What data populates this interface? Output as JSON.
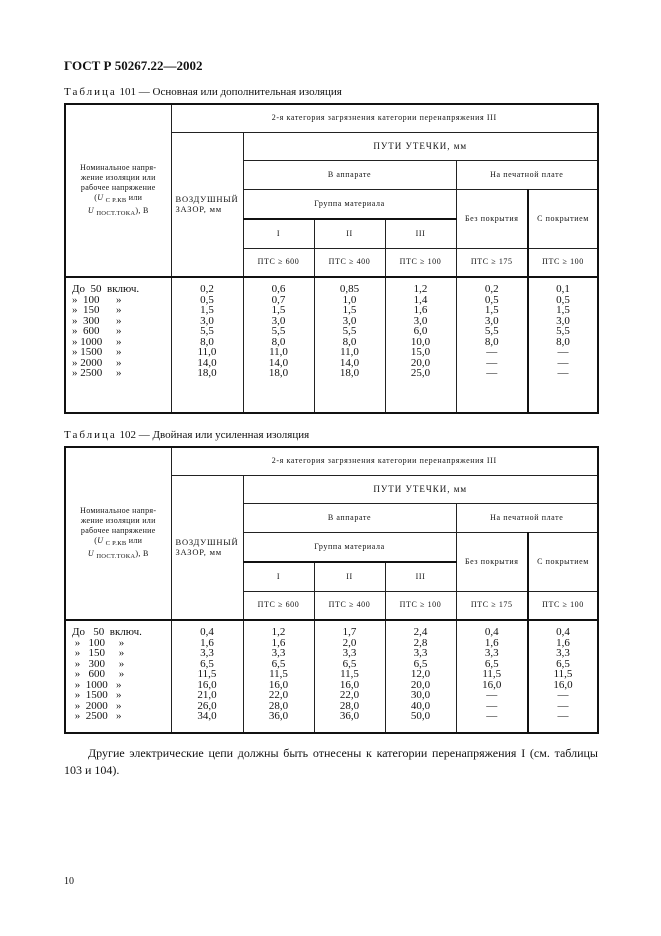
{
  "header": "ГОСТ Р 50267.22—2002",
  "column_headers": {
    "voltage": [
      "Номинальное напря-",
      "жение изоляции или",
      "рабочее напряжение"
    ],
    "voltage_u1": "U",
    "voltage_sub1": "С Р.КВ",
    "voltage_or": " или",
    "voltage_u2": "U",
    "voltage_sub2": "ПОСТ.ТОКА",
    "voltage_unit": "), В",
    "pollution": "2-я категория загрязнения категории перенапряжения III",
    "creepage": "ПУТИ УТЕЧКИ, мм",
    "air_gap": [
      "ВОЗДУШНЫЙ",
      "ЗАЗОР, мм"
    ],
    "in_apparatus": "В аппарате",
    "on_pcb": "На печатной плате",
    "material_group": "Группа материала",
    "uncoated": "Без покрытия",
    "coated": "С покрытием",
    "groups": [
      "I",
      "II",
      "III"
    ],
    "cti": [
      "ПТС ≥ 600",
      "ПТС ≥ 400",
      "ПТС ≥ 100",
      "ПТС ≥ 175",
      "ПТС ≥ 100"
    ]
  },
  "tables": [
    {
      "caption_prefix": "Таблица",
      "caption_rest": " 101 — Основная или дополнительная изоляция",
      "row_labels": [
        "До  50  включ.",
        "»  100      »",
        "»  150      »",
        "»  300      »",
        "»  600      »",
        "» 1000     »",
        "» 1500     »",
        "» 2000     »",
        "» 2500     »"
      ],
      "columns": [
        [
          "0,2",
          "0,5",
          "1,5",
          "3,0",
          "5,5",
          "8,0",
          "11,0",
          "14,0",
          "18,0"
        ],
        [
          "0,6",
          "0,7",
          "1,5",
          "3,0",
          "5,5",
          "8,0",
          "11,0",
          "14,0",
          "18,0"
        ],
        [
          "0,85",
          "1,0",
          "1,5",
          "3,0",
          "5,5",
          "8,0",
          "11,0",
          "14,0",
          "18,0"
        ],
        [
          "1,2",
          "1,4",
          "1,6",
          "3,0",
          "6,0",
          "10,0",
          "15,0",
          "20,0",
          "25,0"
        ],
        [
          "0,2",
          "0,5",
          "1,5",
          "3,0",
          "5,5",
          "8,0",
          "—",
          "—",
          "—"
        ],
        [
          "0,1",
          "0,5",
          "1,5",
          "3,0",
          "5,5",
          "8,0",
          "—",
          "—",
          "—"
        ]
      ]
    },
    {
      "caption_prefix": "Таблица",
      "caption_rest": " 102 — Двойная или усиленная изоляция",
      "row_labels": [
        "До   50  включ.",
        " »   100     »",
        " »   150     »",
        " »   300     »",
        " »   600     »",
        " »  1000   »",
        " »  1500   »",
        " »  2000   »",
        " »  2500   »"
      ],
      "columns": [
        [
          "0,4",
          "1,6",
          "3,3",
          "6,5",
          "11,5",
          "16,0",
          "21,0",
          "26,0",
          "34,0"
        ],
        [
          "1,2",
          "1,6",
          "3,3",
          "6,5",
          "11,5",
          "16,0",
          "22,0",
          "28,0",
          "36,0"
        ],
        [
          "1,7",
          "2,0",
          "3,3",
          "6,5",
          "11,5",
          "16,0",
          "22,0",
          "28,0",
          "36,0"
        ],
        [
          "2,4",
          "2,8",
          "3,3",
          "6,5",
          "12,0",
          "20,0",
          "30,0",
          "40,0",
          "50,0"
        ],
        [
          "0,4",
          "1,6",
          "3,3",
          "6,5",
          "11,5",
          "16,0",
          "—",
          "—",
          "—"
        ],
        [
          "0,4",
          "1,6",
          "3,3",
          "6,5",
          "11,5",
          "16,0",
          "—",
          "—",
          "—"
        ]
      ]
    }
  ],
  "paragraph": "Другие электрические цепи должны быть отнесены к категории перенапряжения I (см. таблицы 103 и 104).",
  "page_number": "10"
}
